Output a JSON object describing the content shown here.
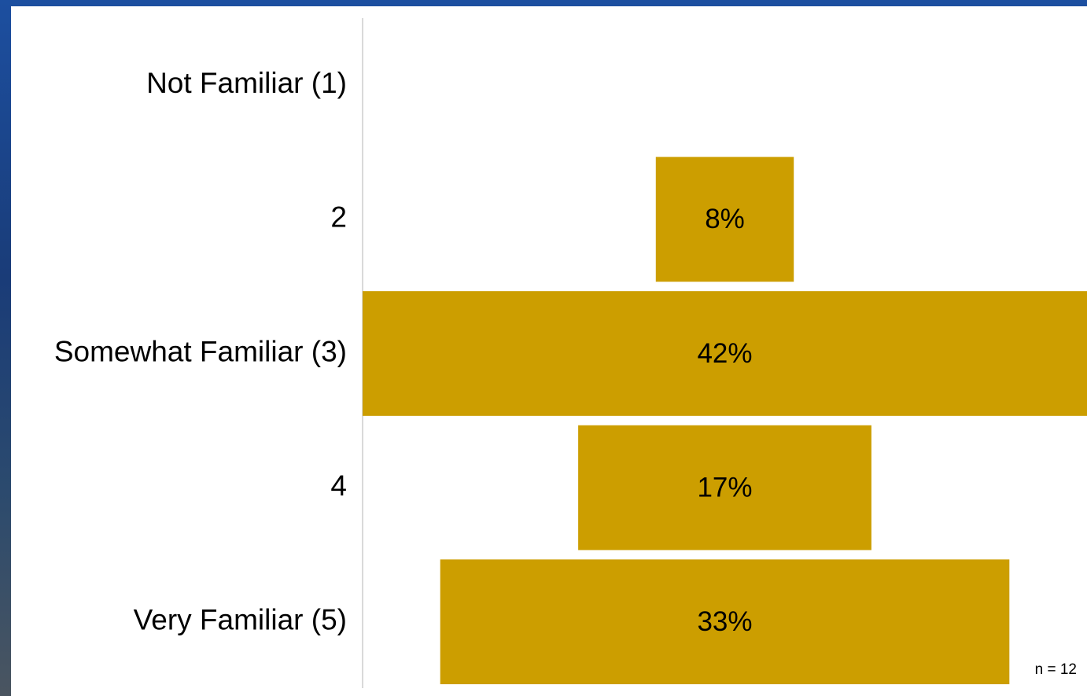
{
  "chart_data": {
    "type": "centered-bar",
    "categories": [
      "Not Familiar (1)",
      "2",
      "Somewhat Familiar (3)",
      "4",
      "Very Familiar (5)"
    ],
    "values": [
      0,
      8,
      42,
      17,
      33
    ],
    "value_labels": [
      null,
      "8%",
      "42%",
      "17%",
      "33%"
    ],
    "color": "#cc9e00",
    "annotation": "n = 12"
  }
}
